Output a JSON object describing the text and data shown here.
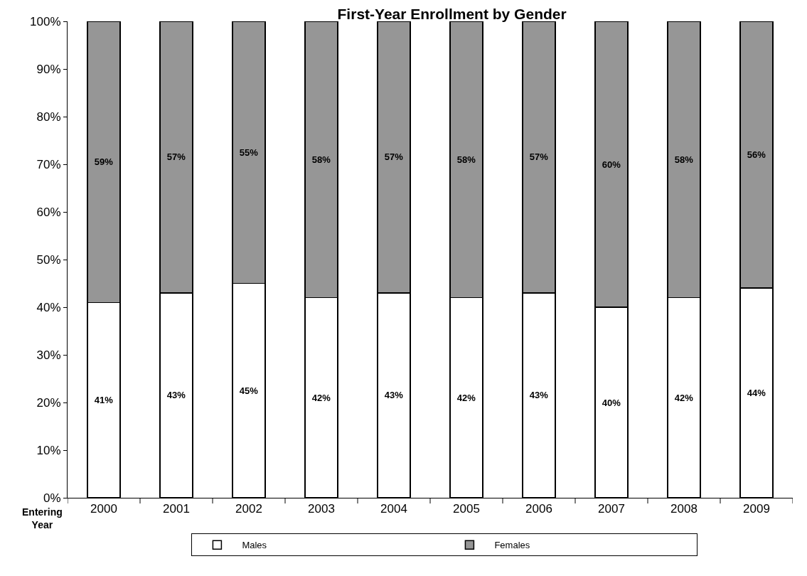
{
  "chart_data": {
    "type": "bar",
    "title": "First-Year Enrollment by Gender",
    "xlabel": "Entering Year",
    "categories": [
      "2000",
      "2001",
      "2002",
      "2003",
      "2004",
      "2005",
      "2006",
      "2007",
      "2008",
      "2009"
    ],
    "stacked": true,
    "series": [
      {
        "name": "Males",
        "color": "#ffffff",
        "values": [
          41,
          43,
          45,
          42,
          43,
          42,
          43,
          40,
          42,
          44
        ],
        "value_labels": [
          "41%",
          "43%",
          "45%",
          "42%",
          "43%",
          "42%",
          "43%",
          "40%",
          "42%",
          "44%"
        ]
      },
      {
        "name": "Females",
        "color": "#969696",
        "values": [
          59,
          57,
          55,
          58,
          57,
          58,
          57,
          60,
          58,
          56
        ],
        "value_labels": [
          "59%",
          "57%",
          "55%",
          "58%",
          "57%",
          "58%",
          "57%",
          "60%",
          "58%",
          "56%"
        ]
      }
    ],
    "ylim": [
      0,
      100
    ],
    "yticks": [
      {
        "value": 0,
        "label": "0%"
      },
      {
        "value": 10,
        "label": "10%"
      },
      {
        "value": 20,
        "label": "20%"
      },
      {
        "value": 30,
        "label": "30%"
      },
      {
        "value": 40,
        "label": "40%"
      },
      {
        "value": 50,
        "label": "50%"
      },
      {
        "value": 60,
        "label": "60%"
      },
      {
        "value": 70,
        "label": "70%"
      },
      {
        "value": 80,
        "label": "80%"
      },
      {
        "value": 90,
        "label": "90%"
      },
      {
        "value": 100,
        "label": "100%"
      }
    ],
    "legend": "bottom"
  }
}
